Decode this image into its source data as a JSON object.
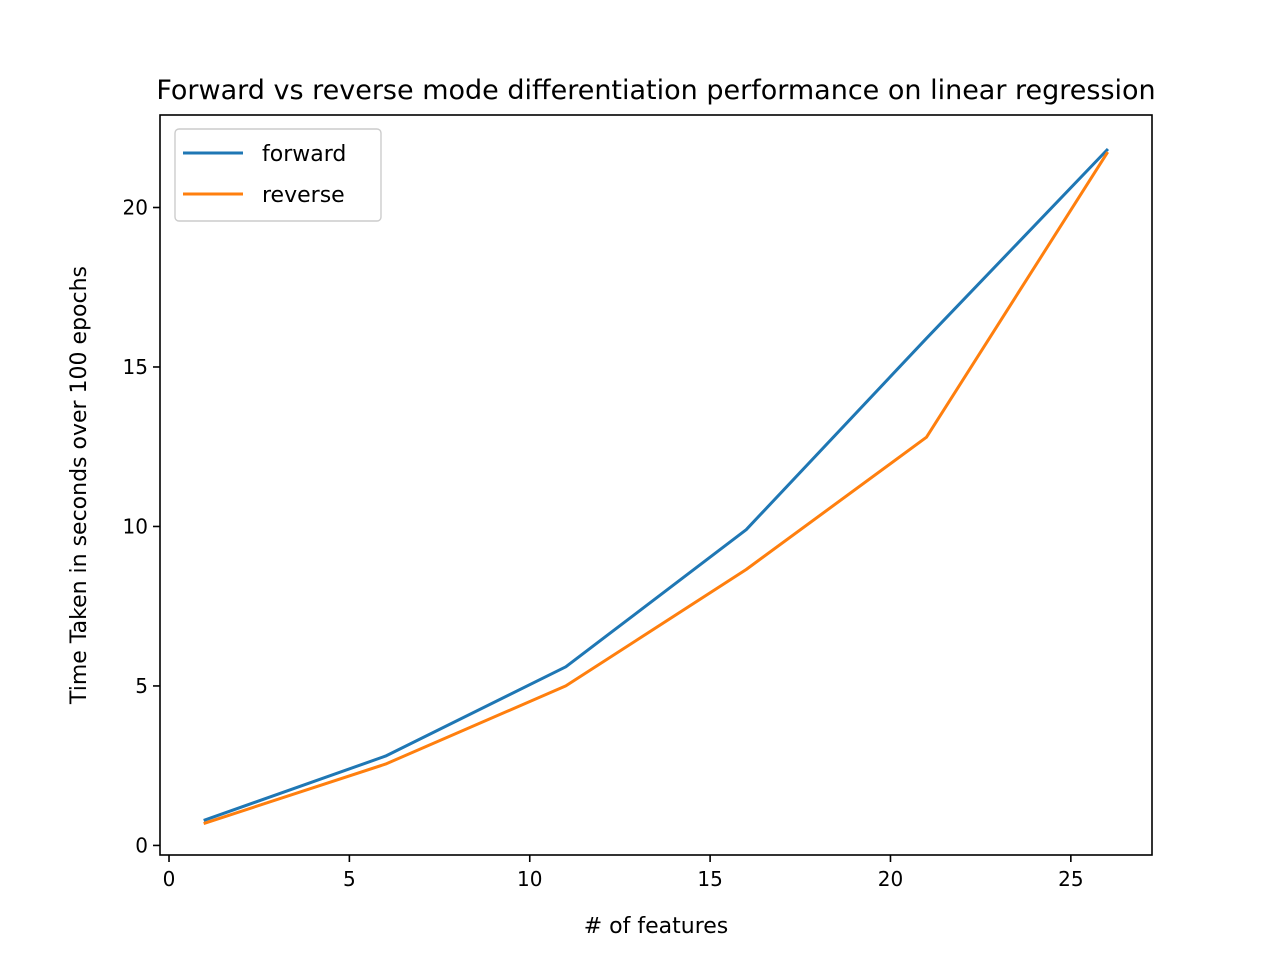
{
  "chart_data": {
    "type": "line",
    "title": "Forward vs reverse mode differentiation performance on linear regression",
    "xlabel": "# of features",
    "ylabel": "Time Taken in seconds over 100 epochs",
    "xlim": [
      -0.25,
      27.25
    ],
    "ylim": [
      -0.3,
      22.9
    ],
    "xticks": [
      0,
      5,
      10,
      15,
      20,
      25
    ],
    "yticks": [
      0,
      5,
      10,
      15,
      20
    ],
    "grid": false,
    "legend": "top-left",
    "x": [
      1,
      6,
      11,
      16,
      21,
      26
    ],
    "series": [
      {
        "name": "forward",
        "color": "#1f77b4",
        "values": [
          0.8,
          2.8,
          5.6,
          9.9,
          15.9,
          21.8
        ]
      },
      {
        "name": "reverse",
        "color": "#ff7f0e",
        "values": [
          0.7,
          2.55,
          5.0,
          8.65,
          12.8,
          21.7
        ]
      }
    ]
  }
}
